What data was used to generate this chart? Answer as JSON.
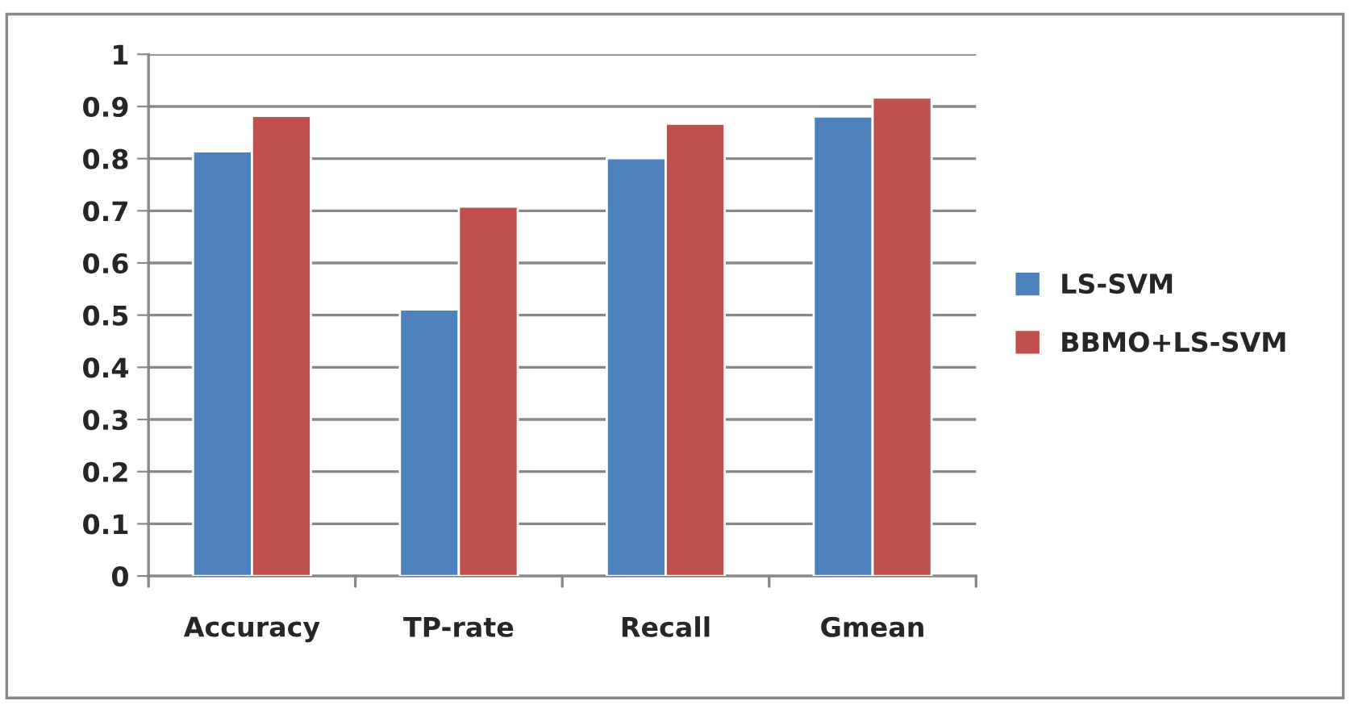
{
  "chart_data": {
    "type": "bar",
    "categories": [
      "Accuracy",
      "TP-rate",
      "Recall",
      "Gmean"
    ],
    "series": [
      {
        "name": "LS-SVM",
        "color": "#4f81bd",
        "values": [
          0.814,
          0.511,
          0.801,
          0.881
        ]
      },
      {
        "name": "BBMO+LS-SVM",
        "color": "#c0504d",
        "values": [
          0.882,
          0.708,
          0.867,
          0.917
        ]
      }
    ],
    "ylim": [
      0,
      1
    ],
    "yticks": [
      0,
      0.1,
      0.2,
      0.3,
      0.4,
      0.5,
      0.6,
      0.7,
      0.8,
      0.9,
      1
    ],
    "grid": "y",
    "legend": "right"
  }
}
